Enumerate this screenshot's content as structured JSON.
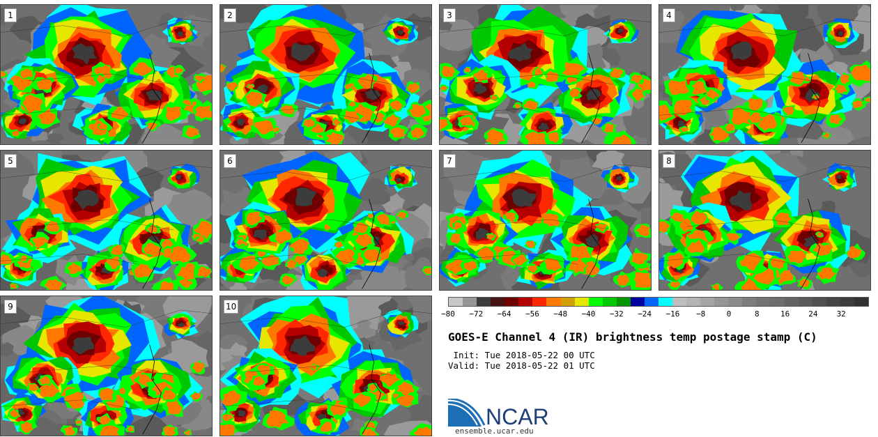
{
  "panels": [
    "1",
    "2",
    "3",
    "4",
    "5",
    "6",
    "7",
    "8",
    "9",
    "10"
  ],
  "colorbar": {
    "colors": [
      "#c8c8c8",
      "#969696",
      "#3c3c3c",
      "#461414",
      "#6e0000",
      "#b40000",
      "#ff2800",
      "#ff7800",
      "#d2a000",
      "#e6e600",
      "#00ff00",
      "#00c800",
      "#009600",
      "#0000a0",
      "#0064ff",
      "#00ffff",
      "#bebebe",
      "#b4b4b4",
      "#a5a5a5",
      "#969696",
      "#8c8c8c",
      "#7d7d7d",
      "#737373",
      "#6e6e6e",
      "#646464",
      "#5a5a5a",
      "#505050",
      "#464646",
      "#3c3c3c",
      "#323232"
    ],
    "ticks": [
      "−80",
      "−72",
      "−64",
      "−56",
      "−48",
      "−40",
      "−32",
      "−24",
      "−16",
      "−8",
      "0",
      "8",
      "16",
      "24",
      "32"
    ]
  },
  "title": "GOES-E Channel 4 (IR) brightness temp postage stamp (C)",
  "init": " Init: Tue 2018-05-22 00 UTC",
  "valid": "Valid: Tue 2018-05-22 01 UTC",
  "logo_text": "NCAR",
  "logo_url": "ensemble.ucar.edu"
}
